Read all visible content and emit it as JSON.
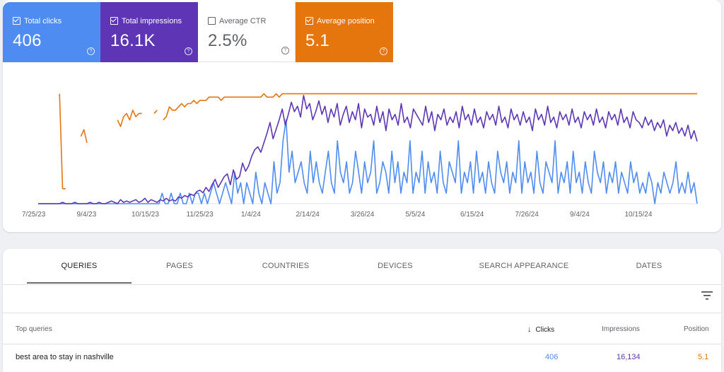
{
  "metrics": [
    {
      "id": "clicks",
      "label": "Total clicks",
      "value": "406",
      "checked": true,
      "color": "#4e8cf1"
    },
    {
      "id": "impressions",
      "label": "Total impressions",
      "value": "16.1K",
      "checked": true,
      "color": "#5e36b5"
    },
    {
      "id": "ctr",
      "label": "Average CTR",
      "value": "2.5%",
      "checked": false,
      "color": "#1e8e3e"
    },
    {
      "id": "position",
      "label": "Average position",
      "value": "5.1",
      "checked": true,
      "color": "#e5750d"
    }
  ],
  "chart_data": {
    "type": "line",
    "x_tick_labels": [
      "7/25/23",
      "9/4/23",
      "10/15/23",
      "11/25/23",
      "1/4/24",
      "2/14/24",
      "3/26/24",
      "5/5/24",
      "6/15/24",
      "7/26/24",
      "9/4/24",
      "10/15/24"
    ],
    "series": [
      {
        "name": "Total clicks",
        "color": "#4e8cf1",
        "values": [
          0,
          0,
          0,
          0,
          0,
          0,
          0,
          0,
          0,
          0,
          0,
          0,
          0,
          0,
          0,
          0,
          0,
          0,
          0,
          0,
          0,
          0,
          0,
          0,
          0,
          0,
          0,
          0,
          0,
          0,
          0,
          0,
          0,
          0,
          0,
          0,
          0,
          0,
          0,
          0,
          0,
          1,
          0,
          0,
          1,
          0,
          0,
          1,
          0,
          0,
          1,
          0,
          1,
          1,
          0,
          1,
          0,
          1,
          2,
          1,
          0,
          1,
          2,
          1,
          0,
          3,
          1,
          2,
          0,
          2,
          1,
          0,
          3,
          1,
          0,
          2,
          1,
          0,
          4,
          1,
          2,
          6,
          8,
          3,
          5,
          2,
          3,
          4,
          2,
          1,
          5,
          2,
          4,
          2,
          1,
          3,
          5,
          2,
          1,
          6,
          3,
          2,
          4,
          1,
          2,
          5,
          3,
          1,
          4,
          2,
          3,
          6,
          1,
          2,
          4,
          3,
          1,
          5,
          2,
          4,
          1,
          3,
          2,
          6,
          1,
          3,
          2,
          5,
          1,
          4,
          2,
          3,
          1,
          5,
          2,
          1,
          4,
          3,
          2,
          6,
          1,
          3,
          2,
          4,
          1,
          5,
          2,
          3,
          1,
          4,
          2,
          1,
          5,
          3,
          2,
          4,
          1,
          3,
          2,
          6,
          1,
          4,
          2,
          3,
          1,
          5,
          2,
          1,
          4,
          3,
          2,
          6,
          1,
          3,
          2,
          4,
          1,
          5,
          2,
          3,
          1,
          4,
          2,
          1,
          5,
          3,
          2,
          4,
          1,
          3,
          2,
          4,
          1,
          3,
          2,
          1,
          4,
          2,
          3,
          1,
          2,
          1,
          3,
          2,
          0,
          2,
          1,
          3,
          2,
          1,
          2,
          4,
          1,
          2,
          1,
          3,
          1,
          2,
          0
        ]
      },
      {
        "name": "Total impressions",
        "color": "#5e36b5",
        "values": [
          0,
          0,
          0,
          0,
          0,
          0,
          0,
          0,
          1,
          0,
          0,
          0,
          1,
          0,
          0,
          0,
          0,
          1,
          0,
          0,
          1,
          0,
          0,
          1,
          2,
          1,
          0,
          3,
          1,
          2,
          1,
          2,
          3,
          1,
          2,
          4,
          1,
          3,
          2,
          1,
          3,
          2,
          4,
          2,
          3,
          2,
          5,
          4,
          6,
          5,
          7,
          6,
          9,
          10,
          8,
          12,
          9,
          14,
          18,
          12,
          16,
          20,
          22,
          14,
          25,
          18,
          20,
          30,
          24,
          28,
          35,
          40,
          42,
          38,
          45,
          52,
          60,
          48,
          55,
          62,
          70,
          58,
          66,
          75,
          68,
          72,
          64,
          80,
          70,
          74,
          62,
          68,
          76,
          66,
          72,
          60,
          70,
          64,
          74,
          58,
          66,
          72,
          60,
          68,
          62,
          74,
          56,
          70,
          64,
          66,
          58,
          72,
          60,
          68,
          54,
          70,
          62,
          66,
          58,
          74,
          60,
          64,
          56,
          70,
          66,
          62,
          58,
          72,
          60,
          68,
          54,
          66,
          62,
          70,
          58,
          64,
          60,
          68,
          56,
          72,
          62,
          66,
          58,
          70,
          60,
          64,
          56,
          68,
          62,
          66,
          58,
          72,
          60,
          64,
          56,
          70,
          62,
          66,
          58,
          68,
          60,
          64,
          54,
          70,
          62,
          66,
          58,
          72,
          60,
          64,
          56,
          68,
          62,
          66,
          58,
          70,
          60,
          64,
          56,
          68,
          62,
          66,
          58,
          70,
          60,
          64,
          56,
          68,
          62,
          66,
          58,
          70,
          60,
          64,
          56,
          68,
          62,
          60,
          56,
          64,
          58,
          62,
          54,
          60,
          56,
          62,
          50,
          58,
          54,
          60,
          52,
          56,
          50,
          58,
          48,
          54,
          46
        ]
      },
      {
        "name": "Average position",
        "color": "#e5750d",
        "values": [
          null,
          null,
          null,
          12,
          null,
          null,
          null,
          1,
          30,
          30,
          null,
          null,
          30,
          null,
          14,
          12,
          16,
          null,
          26,
          null,
          14,
          null,
          10,
          null,
          9,
          null,
          9,
          11,
          8,
          7,
          9,
          6,
          8,
          7,
          7,
          null,
          6,
          null,
          7,
          6,
          null,
          9,
          8,
          5,
          6,
          6,
          5,
          4,
          5,
          4,
          4,
          3,
          4,
          3,
          3,
          3,
          2,
          2,
          2,
          2,
          3,
          2,
          2,
          2,
          2,
          2,
          2,
          2,
          2,
          2,
          2,
          2,
          2,
          2,
          1,
          2,
          2,
          2,
          1,
          2,
          1,
          1,
          1,
          1,
          1,
          1,
          1,
          1,
          1,
          1,
          1,
          1,
          1,
          1,
          1,
          1,
          1,
          1,
          1,
          1,
          1,
          1,
          1,
          1,
          1,
          1,
          1,
          1,
          1,
          1,
          1,
          1,
          1,
          1,
          1,
          1,
          1,
          1,
          1,
          1,
          1,
          1,
          1,
          1,
          1,
          1,
          1,
          1,
          1,
          1,
          1,
          1,
          1,
          1,
          1,
          1,
          1,
          1,
          1,
          1,
          1,
          1,
          1,
          1,
          1,
          1,
          1,
          1,
          1,
          1,
          1,
          1,
          1,
          1,
          1,
          1,
          1,
          1,
          1,
          1,
          1,
          1,
          1,
          1,
          1,
          1,
          1,
          1,
          1,
          1,
          1,
          1,
          1,
          1,
          1,
          1,
          1,
          1,
          1,
          1,
          1,
          1,
          1,
          1,
          1,
          1,
          1,
          1,
          1,
          1,
          1,
          1,
          1,
          1,
          1,
          1,
          1,
          1,
          1,
          1,
          1,
          1,
          1,
          1,
          1,
          1,
          1,
          1,
          1,
          1,
          1,
          1,
          1,
          1,
          1,
          1,
          1
        ]
      }
    ]
  },
  "tabs": [
    {
      "label": "QUERIES",
      "active": true
    },
    {
      "label": "PAGES",
      "active": false
    },
    {
      "label": "COUNTRIES",
      "active": false
    },
    {
      "label": "DEVICES",
      "active": false
    },
    {
      "label": "SEARCH APPEARANCE",
      "active": false
    },
    {
      "label": "DATES",
      "active": false
    }
  ],
  "table": {
    "columns": {
      "query": "Top queries",
      "clicks": "Clicks",
      "impressions": "Impressions",
      "position": "Position"
    },
    "sort_arrow": "↓",
    "rows": [
      {
        "query": "best area to stay in nashville",
        "clicks": "406",
        "impressions": "16,134",
        "position": "5.1"
      }
    ]
  }
}
